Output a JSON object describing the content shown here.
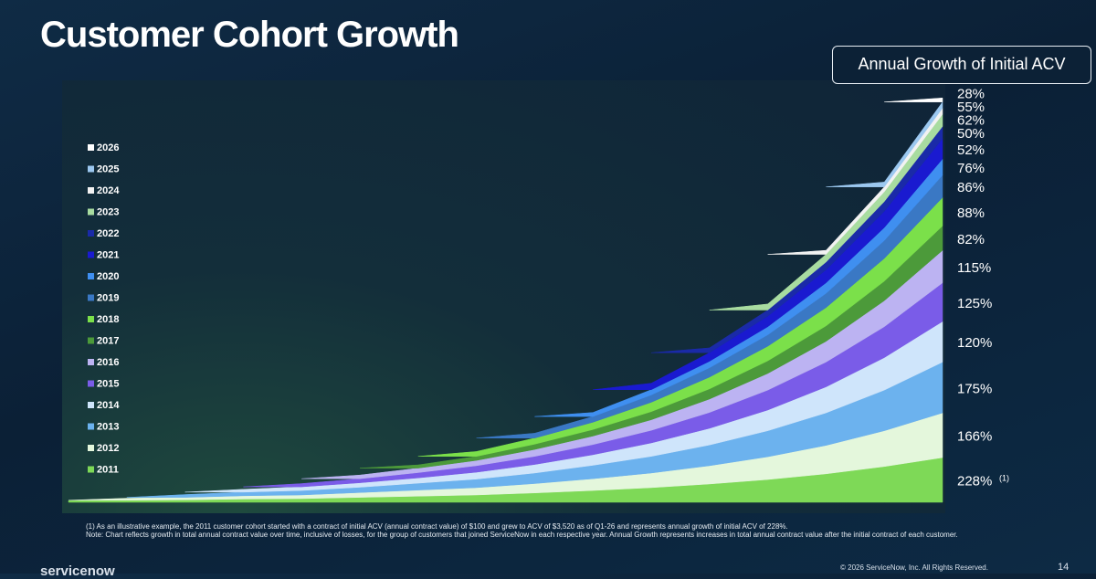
{
  "title": "Customer Cohort Growth",
  "growth_box": "Annual Growth of Initial ACV",
  "chart_data": {
    "type": "stacked-area",
    "categories": [
      null,
      null,
      null,
      null,
      null,
      null,
      null,
      null,
      null,
      null,
      null,
      null,
      null,
      null,
      null,
      null
    ],
    "ylim": [
      0,
      100
    ],
    "series": [
      {
        "name": "2011",
        "color": "#7ed957",
        "values": [
          0.4,
          0.5,
          0.6,
          0.8,
          0.9,
          1.2,
          1.5,
          1.8,
          2.3,
          2.9,
          3.6,
          4.5,
          5.6,
          7.0,
          8.8,
          11
        ]
      },
      {
        "name": "2012",
        "color": "#e4f7dc",
        "values": [
          null,
          0.5,
          0.6,
          0.8,
          0.9,
          1.2,
          1.5,
          1.8,
          2.3,
          2.9,
          3.6,
          4.5,
          5.6,
          7.0,
          8.8,
          11
        ]
      },
      {
        "name": "2013",
        "color": "#6cb2ee",
        "values": [
          null,
          null,
          0.7,
          0.9,
          1.1,
          1.3,
          1.7,
          2.1,
          2.6,
          3.3,
          4.1,
          5.1,
          6.4,
          8.0,
          10,
          12.5
        ]
      },
      {
        "name": "2014",
        "color": "#cfe5fb",
        "values": [
          null,
          null,
          null,
          0.7,
          0.9,
          1.1,
          1.3,
          1.7,
          2.1,
          2.6,
          3.3,
          4.1,
          5.1,
          6.4,
          8,
          10
        ]
      },
      {
        "name": "2015",
        "color": "#7a5ce8",
        "values": [
          null,
          null,
          null,
          null,
          0.8,
          1.0,
          1.3,
          1.6,
          2.0,
          2.5,
          3.1,
          3.9,
          4.9,
          6.1,
          7.6,
          9.5
        ]
      },
      {
        "name": "2016",
        "color": "#bcb3f2",
        "values": [
          null,
          null,
          null,
          null,
          null,
          0.9,
          1.1,
          1.3,
          1.7,
          2.1,
          2.6,
          3.3,
          4.1,
          5.1,
          6.4,
          8
        ]
      },
      {
        "name": "2017",
        "color": "#4c9a3a",
        "values": [
          null,
          null,
          null,
          null,
          null,
          null,
          0.8,
          1.0,
          1.3,
          1.6,
          2.0,
          2.5,
          3.1,
          3.8,
          4.8,
          6
        ]
      },
      {
        "name": "2018",
        "color": "#7be04a",
        "values": [
          null,
          null,
          null,
          null,
          null,
          null,
          null,
          1.2,
          1.5,
          1.8,
          2.3,
          2.9,
          3.6,
          4.5,
          5.6,
          7
        ]
      },
      {
        "name": "2019",
        "color": "#3a78c4",
        "values": [
          null,
          null,
          null,
          null,
          null,
          null,
          null,
          null,
          1.2,
          1.4,
          1.8,
          2.3,
          2.8,
          3.5,
          4.4,
          5.5
        ]
      },
      {
        "name": "2020",
        "color": "#3f8ff0",
        "values": [
          null,
          null,
          null,
          null,
          null,
          null,
          null,
          null,
          null,
          1.0,
          1.3,
          1.6,
          2.0,
          2.6,
          3.2,
          4
        ]
      },
      {
        "name": "2021",
        "color": "#1a1ad0",
        "values": [
          null,
          null,
          null,
          null,
          null,
          null,
          null,
          null,
          null,
          null,
          1.6,
          2.1,
          2.6,
          3.2,
          4,
          5
        ]
      },
      {
        "name": "2022",
        "color": "#1a2aa8",
        "values": [
          null,
          null,
          null,
          null,
          null,
          null,
          null,
          null,
          null,
          null,
          null,
          1.2,
          1.5,
          1.9,
          2.4,
          3
        ]
      },
      {
        "name": "2023",
        "color": "#a8dca0",
        "values": [
          null,
          null,
          null,
          null,
          null,
          null,
          null,
          null,
          null,
          null,
          null,
          null,
          1.5,
          1.9,
          2.4,
          3
        ]
      },
      {
        "name": "2024",
        "color": "#f2f2f2",
        "values": [
          null,
          null,
          null,
          null,
          null,
          null,
          null,
          null,
          null,
          null,
          null,
          null,
          null,
          1.0,
          1.2,
          1.5
        ]
      },
      {
        "name": "2025",
        "color": "#9cc8f0",
        "values": [
          null,
          null,
          null,
          null,
          null,
          null,
          null,
          null,
          null,
          null,
          null,
          null,
          null,
          null,
          1.2,
          1.5
        ]
      },
      {
        "name": "2026",
        "color": "#ffffff",
        "values": [
          null,
          null,
          null,
          null,
          null,
          null,
          null,
          null,
          null,
          null,
          null,
          null,
          null,
          null,
          null,
          1
        ]
      }
    ],
    "growth_labels": [
      "228%",
      "166%",
      "175%",
      "120%",
      "125%",
      "115%",
      "82%",
      "88%",
      "86%",
      "76%",
      "52%",
      "50%",
      "62%",
      "55%",
      "28%"
    ],
    "growth_footnote_marker": "(1)"
  },
  "footnotes": [
    "(1) As an illustrative example, the 2011 customer cohort started with a contract of initial ACV (annual contract value) of $100 and grew to ACV of $3,520 as of Q1-26 and represents annual growth of initial ACV of 228%.",
    "Note: Chart reflects growth in total annual contract value over time, inclusive of losses, for the group of customers that joined ServiceNow in each respective year.  Annual Growth represents increases in total annual contract value after the initial contract of each customer."
  ],
  "footer": {
    "logo": "servicenow",
    "copyright": "© 2026 ServiceNow, Inc. All Rights Reserved.",
    "page": "14"
  }
}
